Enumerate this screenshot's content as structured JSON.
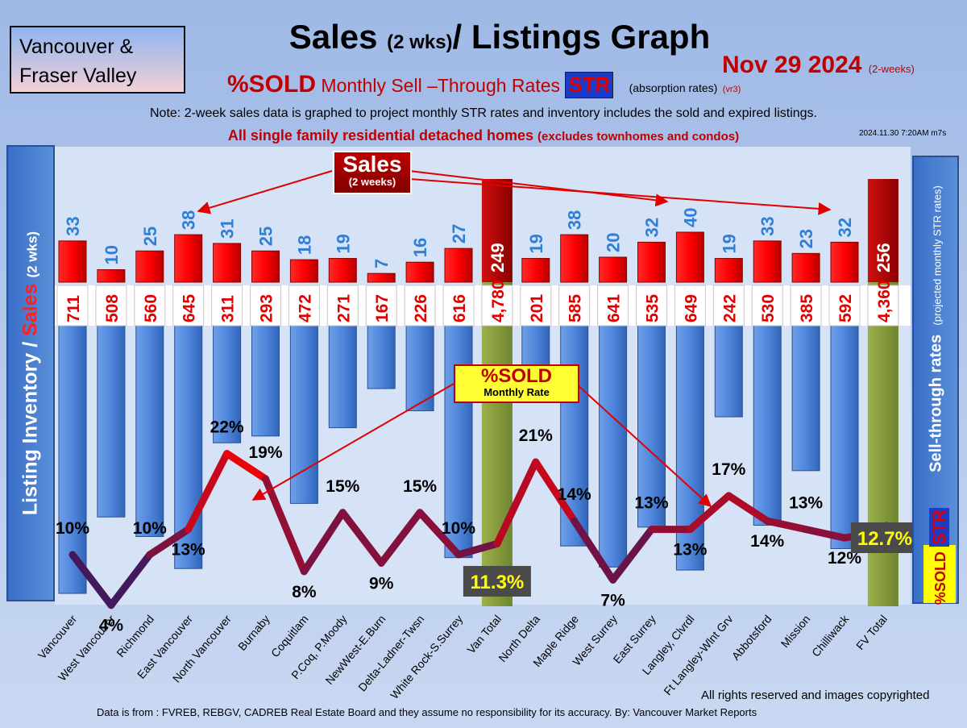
{
  "header": {
    "region_line1": "Vancouver &",
    "region_line2": "Fraser Valley",
    "title_main": "Sales",
    "title_small": "(2 wks)",
    "title_rest": "/ Listings Graph",
    "date": "Nov 29  2024",
    "date_note": "(2-weeks)",
    "subtitle_pct_sold": "%SOLD",
    "subtitle_rest": "Monthly Sell –Through Rates",
    "subtitle_str": "STR",
    "subtitle_absorption": "(absorption rates)",
    "subtitle_version": "(vr3)",
    "note": "Note: 2-week sales data is graphed to project monthly STR rates and inventory includes the sold and expired listings.",
    "detached": "All single family residential detached homes",
    "detached_note": "(excludes townhomes and condos)",
    "timestamp": "2024.11.30 7:20AM m7s"
  },
  "axes": {
    "left_inventory": "Listing Inventory /",
    "left_sales": "Sales",
    "left_wks": "(2 wks)",
    "right_label": "Sell-through rates",
    "right_note": "(projected monthly STR rates)",
    "right_pct": "%SOLD",
    "right_str": "STR"
  },
  "callouts": {
    "sales_l1": "Sales",
    "sales_l2": "(2 weeks)",
    "sold_l1": "%SOLD",
    "sold_l2": "Monthly Rate"
  },
  "footer": {
    "rights": "All rights reserved and  images copyrighted",
    "source": "Data is from : FVREB, REBGV, CADREB Real Estate Board and they assume no responsibility for its accuracy. By: Vancouver Market Reports"
  },
  "chart_data": {
    "type": "bar",
    "categories": [
      "Vancouver",
      "West Vancouver",
      "Richmond",
      "East Vancouver",
      "North Vancouver",
      "Burnaby",
      "Coquitlam",
      "P.Coq, P.Moody",
      "NewWest-E.Burn",
      "Delta-Ladner-Twsn",
      "White Rock-S.Surrey",
      "Van Total",
      "North Delta",
      "Maple Ridge",
      "West Surrey",
      "East Surrey",
      "Langley, Clvrdl",
      "Ft Langley-Wlnt Grv",
      "Abbotsford",
      "Mission",
      "Chilliwack",
      "FV Total"
    ],
    "series": [
      {
        "name": "Sales",
        "values": [
          33,
          10,
          25,
          38,
          31,
          25,
          18,
          19,
          7,
          16,
          27,
          249,
          19,
          38,
          20,
          32,
          40,
          19,
          33,
          23,
          32,
          256
        ]
      },
      {
        "name": "Listing Inventory",
        "values": [
          711,
          508,
          560,
          645,
          311,
          293,
          472,
          271,
          167,
          226,
          616,
          4780,
          201,
          585,
          641,
          535,
          649,
          242,
          530,
          385,
          592,
          4360
        ]
      },
      {
        "name": "%SOLD",
        "values": [
          10,
          4,
          10,
          13,
          22,
          19,
          8,
          15,
          9,
          15,
          10,
          11.3,
          21,
          14,
          7,
          13,
          13,
          17,
          14,
          13,
          12,
          12.7
        ]
      }
    ],
    "sales_labels": [
      "33",
      "10",
      "25",
      "38",
      "31",
      "25",
      "18",
      "19",
      "7",
      "16",
      "27",
      "249",
      "19",
      "38",
      "20",
      "32",
      "40",
      "19",
      "33",
      "23",
      "32",
      "256"
    ],
    "inventory_labels": [
      "711",
      "508",
      "560",
      "645",
      "311",
      "293",
      "472",
      "271",
      "167",
      "226",
      "616",
      "4,780",
      "201",
      "585",
      "641",
      "535",
      "649",
      "242",
      "530",
      "385",
      "592",
      "4,360"
    ],
    "str_labels": [
      "10%",
      "4%",
      "10%",
      "13%",
      "22%",
      "19%",
      "8%",
      "15%",
      "9%",
      "15%",
      "10%",
      "11.3%",
      "21%",
      "14%",
      "7%",
      "13%",
      "13%",
      "17%",
      "14%",
      "13%",
      "12%",
      "12.7%"
    ],
    "total_indices": [
      11,
      21
    ]
  }
}
